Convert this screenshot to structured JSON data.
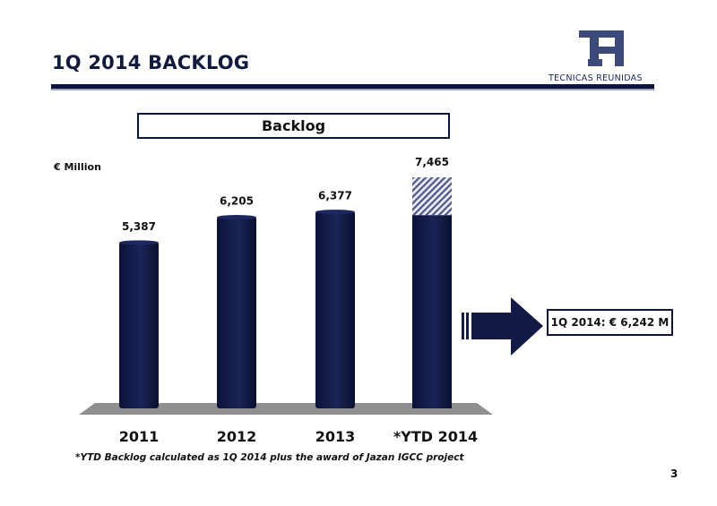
{
  "slide": {
    "title": "1Q 2014 BACKLOG",
    "logo_text": "TECNICAS REUNIDAS",
    "page_number": "3"
  },
  "chart_data": {
    "type": "bar",
    "title": "Backlog",
    "unit_label": "€ Million",
    "categories": [
      "2011",
      "2012",
      "2013",
      "*YTD 2014"
    ],
    "values": [
      5387,
      6205,
      6377,
      7465
    ],
    "value_labels": [
      "5,387",
      "6,205",
      "6,377",
      "7,465"
    ],
    "highlight": {
      "category": "*YTD 2014",
      "base_value": 6242,
      "hatched_value": 1223
    },
    "ylim": [
      0,
      7465
    ],
    "grid": false,
    "legend": "none",
    "colors": {
      "bar": "#121a45",
      "bar_highlight": "#2a3568",
      "floor": "#8f8f8f",
      "hatch": "#5a6490"
    }
  },
  "callout": {
    "text": "1Q 2014: € 6,242 M"
  },
  "footnote": "*YTD Backlog calculated as 1Q 2014 plus the award of Jazan IGCC project"
}
